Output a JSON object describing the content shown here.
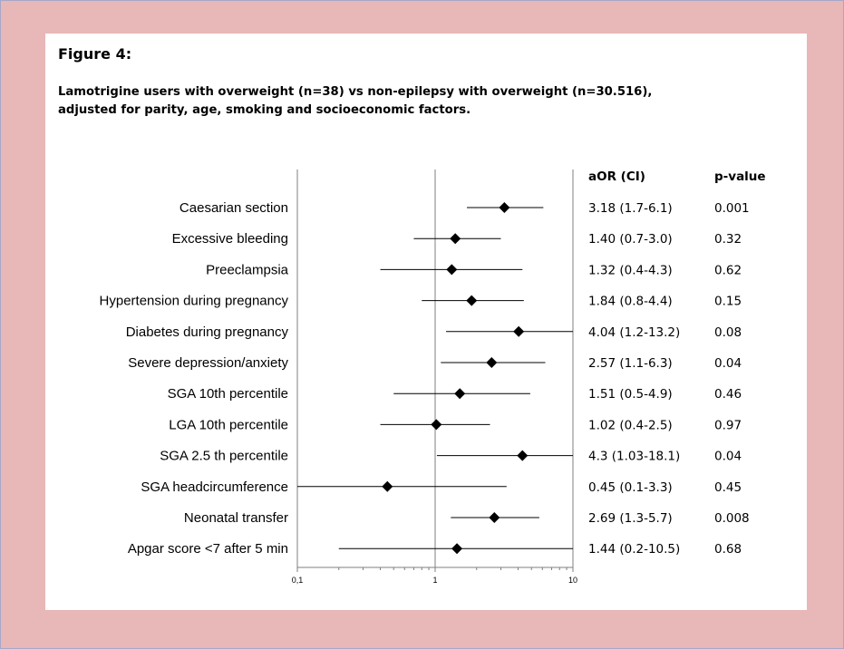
{
  "figure_label": "Figure 4:",
  "subtitle_line1": "Lamotrigine users with overweight (n=38) vs non-epilepsy with overweight (n=30.516),",
  "subtitle_line2": "adjusted for parity, age, smoking and socioeconomic factors.",
  "chart_data": {
    "type": "forest",
    "title": "Figure 4:",
    "subtitle": "Lamotrigine users with overweight (n=38) vs non-epilepsy with overweight (n=30.516), adjusted for parity, age, smoking and socioeconomic factors.",
    "x_scale": "log",
    "xlim": [
      0.1,
      10
    ],
    "x_ticks": [
      0.1,
      1,
      10
    ],
    "x_tick_labels": [
      "0,1",
      "1",
      "10"
    ],
    "reference_line": 1,
    "grid": false,
    "column_headers": {
      "aor": "aOR (CI)",
      "p": "p-value"
    },
    "rows": [
      {
        "label": "Caesarian section",
        "aor": 3.18,
        "lo": 1.7,
        "hi": 6.1,
        "aor_text": "3.18 (1.7-6.1)",
        "p": "0.001"
      },
      {
        "label": "Excessive bleeding",
        "aor": 1.4,
        "lo": 0.7,
        "hi": 3.0,
        "aor_text": "1.40 (0.7-3.0)",
        "p": "0.32"
      },
      {
        "label": "Preeclampsia",
        "aor": 1.32,
        "lo": 0.4,
        "hi": 4.3,
        "aor_text": "1.32 (0.4-4.3)",
        "p": "0.62"
      },
      {
        "label": "Hypertension during pregnancy",
        "aor": 1.84,
        "lo": 0.8,
        "hi": 4.4,
        "aor_text": "1.84 (0.8-4.4)",
        "p": "0.15"
      },
      {
        "label": "Diabetes during pregnancy",
        "aor": 4.04,
        "lo": 1.2,
        "hi": 13.2,
        "aor_text": "4.04 (1.2-13.2)",
        "p": "0.08"
      },
      {
        "label": "Severe depression/anxiety",
        "aor": 2.57,
        "lo": 1.1,
        "hi": 6.3,
        "aor_text": "2.57 (1.1-6.3)",
        "p": "0.04"
      },
      {
        "label": "SGA 10th percentile",
        "aor": 1.51,
        "lo": 0.5,
        "hi": 4.9,
        "aor_text": "1.51 (0.5-4.9)",
        "p": "0.46"
      },
      {
        "label": "LGA 10th percentile",
        "aor": 1.02,
        "lo": 0.4,
        "hi": 2.5,
        "aor_text": "1.02 (0.4-2.5)",
        "p": "0.97"
      },
      {
        "label": "SGA  2.5 th percentile",
        "aor": 4.3,
        "lo": 1.03,
        "hi": 18.1,
        "aor_text": "4.3 (1.03-18.1)",
        "p": "0.04"
      },
      {
        "label": "SGA headcircumference",
        "aor": 0.45,
        "lo": 0.1,
        "hi": 3.3,
        "aor_text": "0.45 (0.1-3.3)",
        "p": "0.45"
      },
      {
        "label": "Neonatal transfer",
        "aor": 2.69,
        "lo": 1.3,
        "hi": 5.7,
        "aor_text": "2.69 (1.3-5.7)",
        "p": "0.008"
      },
      {
        "label": "Apgar score <7 after 5 min",
        "aor": 1.44,
        "lo": 0.2,
        "hi": 10.5,
        "aor_text": "1.44 (0.2-10.5)",
        "p": "0.68"
      }
    ]
  }
}
